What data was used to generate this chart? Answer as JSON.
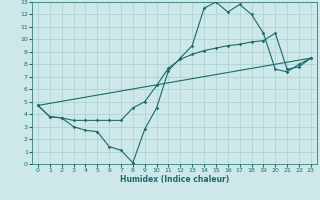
{
  "xlabel": "Humidex (Indice chaleur)",
  "background_color": "#cce8e8",
  "grid_color": "#aacfcf",
  "line_color": "#1a6b6b",
  "xlim": [
    -0.5,
    23.5
  ],
  "ylim": [
    0,
    13
  ],
  "xticks": [
    0,
    1,
    2,
    3,
    4,
    5,
    6,
    7,
    8,
    9,
    10,
    11,
    12,
    13,
    14,
    15,
    16,
    17,
    18,
    19,
    20,
    21,
    22,
    23
  ],
  "yticks": [
    0,
    1,
    2,
    3,
    4,
    5,
    6,
    7,
    8,
    9,
    10,
    11,
    12,
    13
  ],
  "line1_x": [
    0,
    1,
    2,
    3,
    4,
    5,
    6,
    7,
    8,
    9,
    10,
    11,
    12,
    13,
    14,
    15,
    16,
    17,
    18,
    19,
    20,
    21,
    22,
    23
  ],
  "line1_y": [
    4.7,
    3.8,
    3.7,
    3.0,
    2.7,
    2.6,
    1.4,
    1.1,
    0.1,
    2.8,
    4.5,
    7.5,
    8.5,
    9.5,
    12.5,
    13.0,
    12.2,
    12.8,
    12.0,
    10.5,
    7.6,
    7.4,
    8.0,
    8.5
  ],
  "line2_x": [
    0,
    1,
    2,
    3,
    4,
    5,
    6,
    7,
    8,
    9,
    10,
    11,
    12,
    13,
    14,
    15,
    16,
    17,
    18,
    19,
    20,
    21,
    22,
    23
  ],
  "line2_y": [
    4.7,
    3.8,
    3.7,
    3.5,
    3.5,
    3.5,
    3.5,
    3.5,
    4.5,
    5.0,
    6.3,
    7.7,
    8.4,
    8.8,
    9.1,
    9.3,
    9.5,
    9.6,
    9.8,
    9.9,
    10.5,
    7.6,
    7.8,
    8.5
  ],
  "line3_x": [
    0,
    23
  ],
  "line3_y": [
    4.7,
    8.5
  ]
}
